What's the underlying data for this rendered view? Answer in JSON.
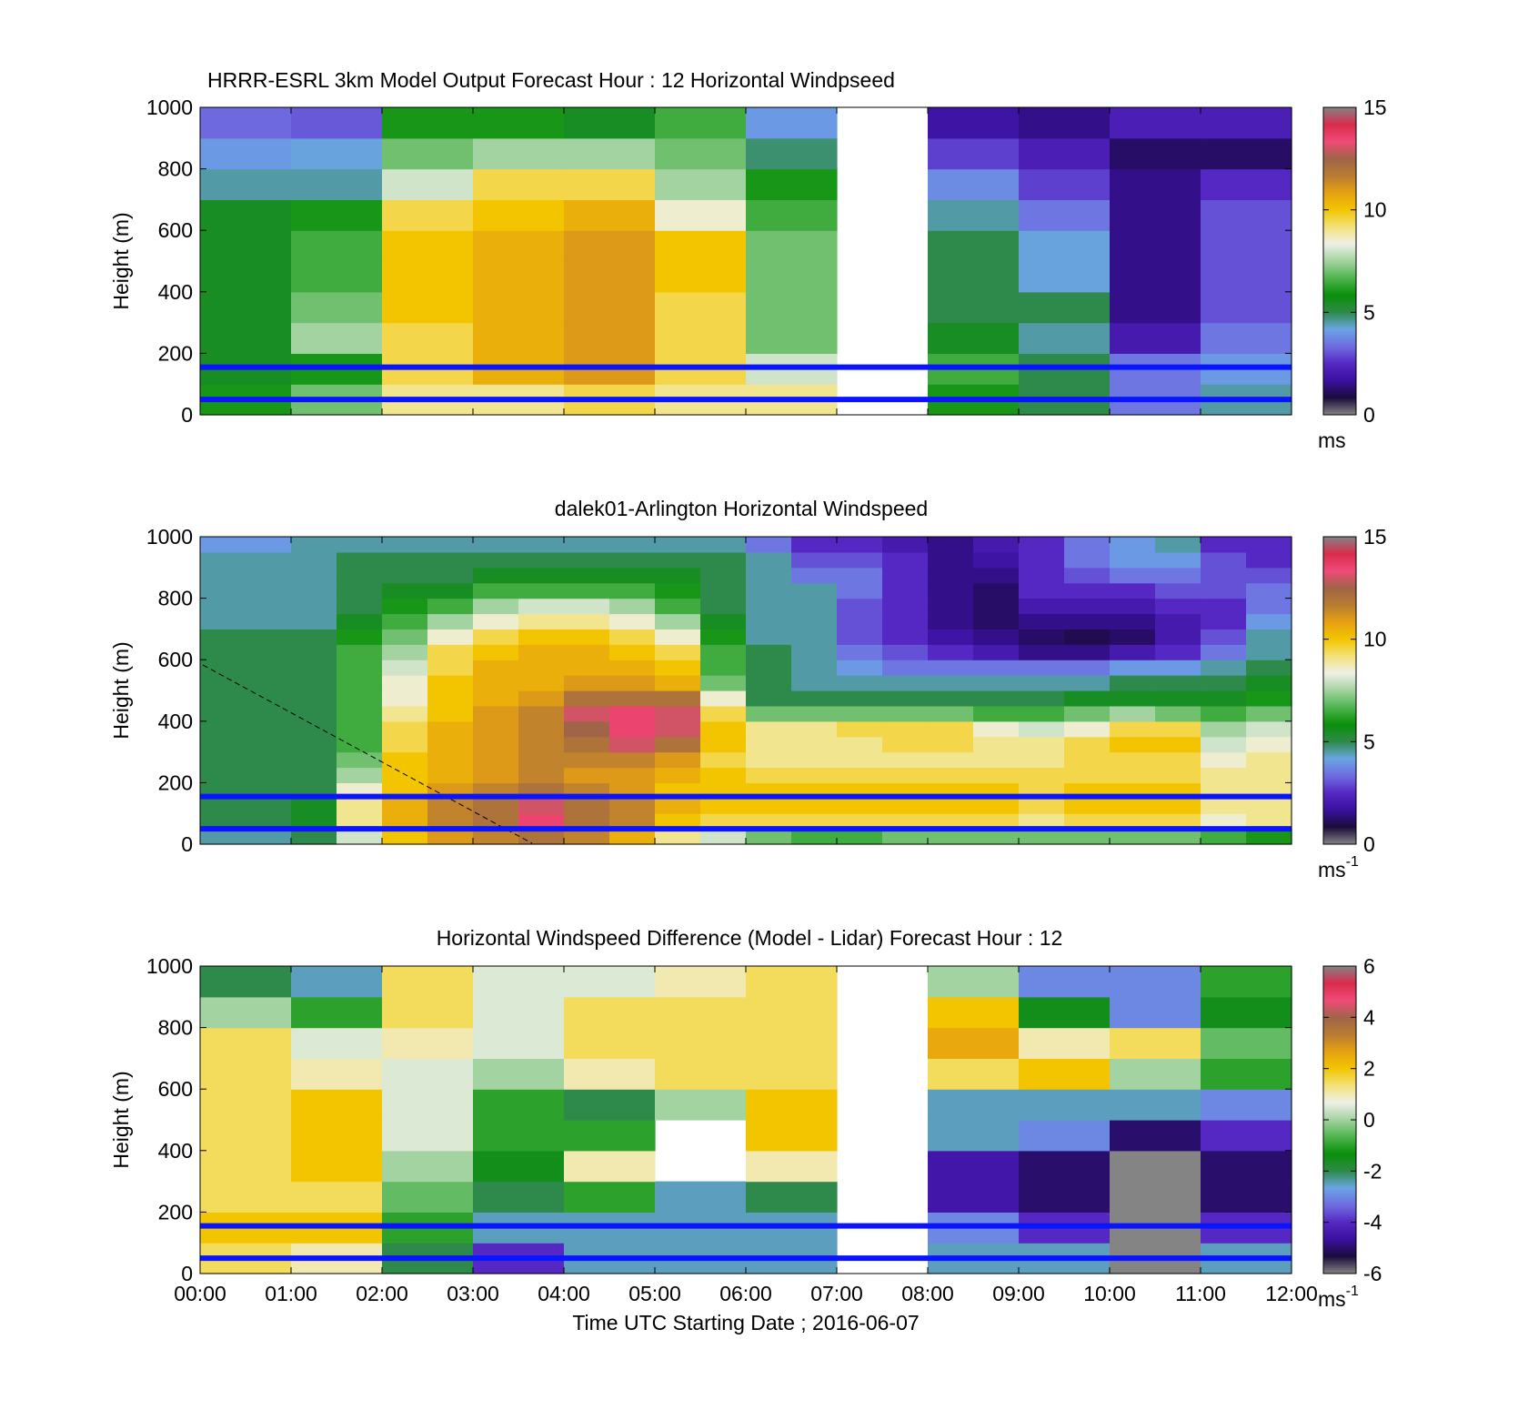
{
  "figure": {
    "xlabel": "Time UTC  Starting Date ; 2016-06-07",
    "x_ticks": [
      "00:00",
      "01:00",
      "02:00",
      "03:00",
      "04:00",
      "05:00",
      "06:00",
      "07:00",
      "08:00",
      "09:00",
      "10:00",
      "11:00",
      "12:00"
    ],
    "y_ticks": [
      "0",
      "200",
      "400",
      "600",
      "800",
      "1000"
    ],
    "ylabel": "Height (m)"
  },
  "colors": {
    "boundary_lines": "#0a14ff",
    "colormap": [
      "#848484",
      "#1a0b3a",
      "#3a109e",
      "#5528c4",
      "#6f6ce0",
      "#6aa4e4",
      "#2e8a4a",
      "#0a8f0a",
      "#4eb34e",
      "#a3d3a0",
      "#eef0e6",
      "#f3e27a",
      "#f2c500",
      "#e6a012",
      "#b87c32",
      "#a06448",
      "#f04a78",
      "#d92c4c",
      "#848484"
    ]
  },
  "chart_data": [
    {
      "type": "heatmap",
      "title": "HRRR-ESRL 3km Model Output   Forecast Hour : 12 Horizontal Windpseed",
      "xlabel": "",
      "ylabel": "Height (m)",
      "x_range_hours": [
        0,
        12
      ],
      "ylim": [
        0,
        1000
      ],
      "colorbar": {
        "min": 0,
        "max": 15,
        "ticks": [
          "0",
          "5",
          "10",
          "15"
        ],
        "unit": "ms"
      },
      "x": [
        0,
        1,
        2,
        3,
        4,
        5,
        6,
        7,
        8,
        9,
        10,
        11
      ],
      "y": [
        50,
        150,
        250,
        350,
        450,
        550,
        650,
        750,
        850,
        950
      ],
      "z": [
        [
          6,
          7,
          9,
          9,
          9.5,
          9,
          9,
          null,
          6,
          5,
          3.5,
          4.5
        ],
        [
          5.5,
          6,
          9.5,
          10.5,
          11,
          9.5,
          8,
          null,
          6.5,
          5,
          3.5,
          4
        ],
        [
          5.5,
          7.5,
          9.5,
          10.5,
          11,
          9.5,
          7,
          null,
          5.5,
          4.5,
          2,
          3.5
        ],
        [
          5.5,
          7,
          10,
          10.5,
          11,
          9.5,
          7,
          null,
          5,
          5,
          1.5,
          3
        ],
        [
          5.5,
          6.5,
          10,
          10.5,
          11,
          10,
          7,
          null,
          5,
          4.2,
          1.5,
          3
        ],
        [
          5.5,
          6.5,
          10,
          10.5,
          11,
          10,
          7,
          null,
          5,
          4.2,
          1.5,
          3
        ],
        [
          5.5,
          6,
          9.5,
          10,
          10.5,
          8.5,
          6.5,
          null,
          4.5,
          3.5,
          1.5,
          3
        ],
        [
          4.5,
          4.5,
          8,
          9.5,
          9.5,
          7.5,
          6,
          null,
          3.8,
          2.8,
          1.5,
          2.5
        ],
        [
          4,
          4.2,
          7,
          7.5,
          7.5,
          7,
          4.8,
          null,
          2.8,
          2.2,
          1.2,
          1.2
        ],
        [
          3.3,
          3.1,
          6,
          6,
          5.5,
          6.5,
          4,
          null,
          1.8,
          1.5,
          2.2,
          2.2
        ]
      ],
      "lines_m": [
        50,
        155
      ]
    },
    {
      "type": "heatmap",
      "title": "dalek01-Arlington  Horizontal Windspeed",
      "xlabel": "",
      "ylabel": "Height (m)",
      "x_range_hours": [
        0,
        12
      ],
      "ylim": [
        0,
        1000
      ],
      "colorbar": {
        "min": 0,
        "max": 15,
        "ticks": [
          "0",
          "5",
          "10",
          "15"
        ],
        "unit": "ms-1"
      },
      "x": [
        0,
        0.5,
        1,
        1.5,
        2,
        2.5,
        3,
        3.5,
        4,
        4.5,
        5,
        5.5,
        6,
        6.5,
        7,
        7.5,
        8,
        8.5,
        9,
        9.5,
        10,
        10.5,
        11,
        11.5
      ],
      "y": [
        25,
        75,
        125,
        175,
        225,
        275,
        325,
        375,
        425,
        475,
        525,
        575,
        625,
        675,
        725,
        775,
        825,
        875,
        925,
        975
      ],
      "z": [
        [
          4.5,
          4.5,
          5,
          8,
          10,
          11,
          11.5,
          12,
          11.5,
          10.5,
          9,
          8,
          7,
          6.5,
          6.5,
          7,
          7,
          7,
          7,
          7,
          7,
          7,
          6.5,
          6
        ],
        [
          5,
          5,
          5.5,
          9,
          10.5,
          11.5,
          12,
          13.5,
          12,
          11.5,
          10,
          9.5,
          9.5,
          9.5,
          9.5,
          9.5,
          9.5,
          9.5,
          9,
          9.5,
          9.5,
          9.5,
          8.5,
          9
        ],
        [
          5,
          5,
          5.5,
          9,
          10.5,
          11.5,
          12,
          13,
          12,
          11.5,
          10.5,
          10,
          10,
          10,
          10,
          10,
          10,
          10,
          9.5,
          10,
          10,
          10,
          9,
          9
        ],
        [
          5,
          5,
          5,
          8.5,
          10,
          11,
          11.5,
          12,
          11.5,
          11,
          10,
          10,
          10,
          10,
          10,
          10,
          10,
          10,
          9.5,
          10,
          10,
          10,
          9,
          9
        ],
        [
          5,
          5,
          5,
          7.5,
          10,
          10.5,
          11,
          11.5,
          11,
          11,
          10.5,
          10,
          9.5,
          9.5,
          9.5,
          9.5,
          9.5,
          9.5,
          9.5,
          9.5,
          9.5,
          9.5,
          9,
          9
        ],
        [
          5,
          5,
          5,
          7,
          10,
          10.5,
          11,
          11.5,
          11.5,
          11.5,
          11,
          9.5,
          9,
          9,
          9,
          9,
          9,
          9,
          9,
          9.5,
          9.5,
          9.5,
          8.5,
          9
        ],
        [
          5,
          5,
          5,
          6.5,
          9.5,
          10.5,
          11,
          11.5,
          12,
          13,
          12,
          10,
          9,
          9,
          9,
          9.5,
          9.5,
          9,
          9,
          9.5,
          10,
          10,
          8,
          8.5
        ],
        [
          5,
          5,
          5,
          6.5,
          9.5,
          10.5,
          11,
          11.5,
          12.5,
          13.5,
          13,
          10,
          9,
          9,
          9.5,
          9.5,
          9.5,
          8.5,
          8,
          8.5,
          9.5,
          9.5,
          7.5,
          8
        ],
        [
          5,
          5,
          5,
          6.5,
          9,
          10,
          11,
          11.5,
          13,
          13.5,
          13,
          9.5,
          7,
          7,
          7,
          7,
          7,
          6.5,
          6.5,
          7,
          7.5,
          7,
          6.5,
          7
        ],
        [
          5,
          5,
          5,
          6.5,
          8.5,
          10,
          10.5,
          11,
          12,
          12,
          12,
          8.5,
          5,
          5,
          5,
          5,
          5,
          5,
          5,
          5.5,
          5.5,
          5.5,
          5.5,
          6
        ],
        [
          5,
          5,
          5,
          6.5,
          8.5,
          10,
          10.5,
          10.5,
          11,
          11,
          10.5,
          7,
          5,
          4.5,
          4.5,
          4.5,
          4.5,
          4.5,
          4.5,
          4.5,
          5,
          5,
          5,
          5.5
        ],
        [
          5,
          5,
          5,
          6.5,
          8,
          9.5,
          10.5,
          10.5,
          10.5,
          10.5,
          10,
          6.5,
          5,
          4.5,
          4,
          3.5,
          3.5,
          3.5,
          3.5,
          3.5,
          4,
          4,
          4.5,
          5
        ],
        [
          5,
          5,
          5,
          6.5,
          7.5,
          9.5,
          10,
          10.5,
          10.5,
          10,
          9.5,
          6.5,
          5,
          4.5,
          3.5,
          3,
          2.5,
          2,
          1.5,
          1.5,
          2,
          2.5,
          3.5,
          4.5
        ],
        [
          5,
          5,
          5,
          6,
          7,
          8.5,
          9.5,
          10,
          10,
          9.5,
          8.5,
          6,
          4.5,
          4.5,
          3,
          2.5,
          1.8,
          1.5,
          1.2,
          1,
          1.2,
          2,
          3,
          4.5
        ],
        [
          4.5,
          4.5,
          4.5,
          5.5,
          6.5,
          7.5,
          8.5,
          9,
          9,
          8.5,
          7.5,
          5.5,
          4.5,
          4.5,
          3,
          2.5,
          1.5,
          1.2,
          1.5,
          1.5,
          1.5,
          2,
          2.5,
          4
        ],
        [
          4.5,
          4.5,
          4.5,
          5,
          6,
          6.5,
          7.5,
          8,
          8,
          7.5,
          6.5,
          5,
          4.5,
          4.5,
          3,
          2.5,
          1.5,
          1.2,
          2,
          2,
          2,
          2.5,
          2.5,
          3.5
        ],
        [
          4.5,
          4.5,
          4.5,
          5,
          5.5,
          5.5,
          6.5,
          6.5,
          6.5,
          6.5,
          6,
          5,
          4.5,
          4.5,
          3.5,
          2.5,
          1.5,
          1.2,
          2.5,
          2.5,
          2.5,
          3,
          3,
          3.5
        ],
        [
          4.5,
          4.5,
          4.5,
          5,
          5,
          5,
          5.5,
          5.5,
          5.5,
          5.5,
          5.5,
          5,
          4.5,
          3.5,
          3.5,
          2.5,
          1.5,
          1.5,
          2.5,
          3,
          3.5,
          3.5,
          3,
          3
        ],
        [
          4.5,
          4.5,
          4.5,
          5,
          5,
          5,
          5,
          5,
          5,
          5,
          5,
          5,
          4.5,
          3,
          3,
          2.5,
          1.5,
          1.8,
          2.5,
          3.5,
          4,
          4,
          3,
          2.5
        ],
        [
          4,
          4,
          4.5,
          4.5,
          4.5,
          4.5,
          4.5,
          4.5,
          4.5,
          4.5,
          4.5,
          4.5,
          3.5,
          2.5,
          2.5,
          2,
          1.5,
          2,
          2.5,
          3.5,
          4,
          4.5,
          2.5,
          2.5
        ]
      ],
      "lines_m": [
        50,
        155
      ]
    },
    {
      "type": "heatmap",
      "title": "Horizontal Windspeed Difference (Model - Lidar) Forecast Hour : 12",
      "xlabel": "Time UTC  Starting Date ; 2016-06-07",
      "ylabel": "Height (m)",
      "x_range_hours": [
        0,
        12
      ],
      "ylim": [
        0,
        1000
      ],
      "colorbar": {
        "min": -6,
        "max": 6,
        "ticks": [
          "-6",
          "-4",
          "-2",
          "0",
          "2",
          "4",
          "6"
        ],
        "unit": "ms-1"
      },
      "x": [
        0,
        1,
        2,
        3,
        4,
        5,
        6,
        7,
        8,
        9,
        10,
        11
      ],
      "y": [
        50,
        150,
        250,
        350,
        450,
        550,
        650,
        750,
        850,
        950
      ],
      "z": [
        [
          1.5,
          1,
          -2,
          -4,
          -2.5,
          -2.5,
          -2.5,
          null,
          -2.5,
          -2.5,
          -6,
          -2.5
        ],
        [
          2,
          2,
          -1,
          -2.5,
          -2.5,
          -2.5,
          -2.5,
          null,
          -3,
          -4,
          -6,
          -4
        ],
        [
          1.5,
          1.5,
          -0.5,
          -2,
          -1,
          -2.5,
          -2,
          null,
          -4.5,
          -5,
          -6,
          -5
        ],
        [
          1.5,
          2,
          0,
          -1.5,
          1,
          null,
          1,
          null,
          -4.5,
          -5,
          -6,
          -5
        ],
        [
          1.5,
          2,
          0.5,
          -1,
          -1,
          null,
          2,
          null,
          -2.5,
          -3,
          -5,
          -4
        ],
        [
          1.5,
          2,
          0.5,
          -1,
          -2,
          0,
          2,
          null,
          -2.5,
          -2.5,
          -2.5,
          -3
        ],
        [
          1.5,
          1,
          0.5,
          0,
          1,
          1.5,
          1.5,
          null,
          1.5,
          2,
          0,
          -1
        ],
        [
          1.5,
          0.5,
          1,
          0.5,
          1.5,
          1.5,
          1.5,
          null,
          2.5,
          1,
          1.5,
          -0.5
        ],
        [
          0,
          -1,
          1.5,
          0.5,
          1.5,
          1.5,
          1.5,
          null,
          2,
          -1.5,
          -3,
          -1.5
        ],
        [
          -2,
          -2.5,
          1.5,
          0.5,
          0.5,
          1,
          1.5,
          null,
          0,
          -3,
          -3,
          -1
        ]
      ],
      "lines_m": [
        50,
        155
      ]
    }
  ]
}
